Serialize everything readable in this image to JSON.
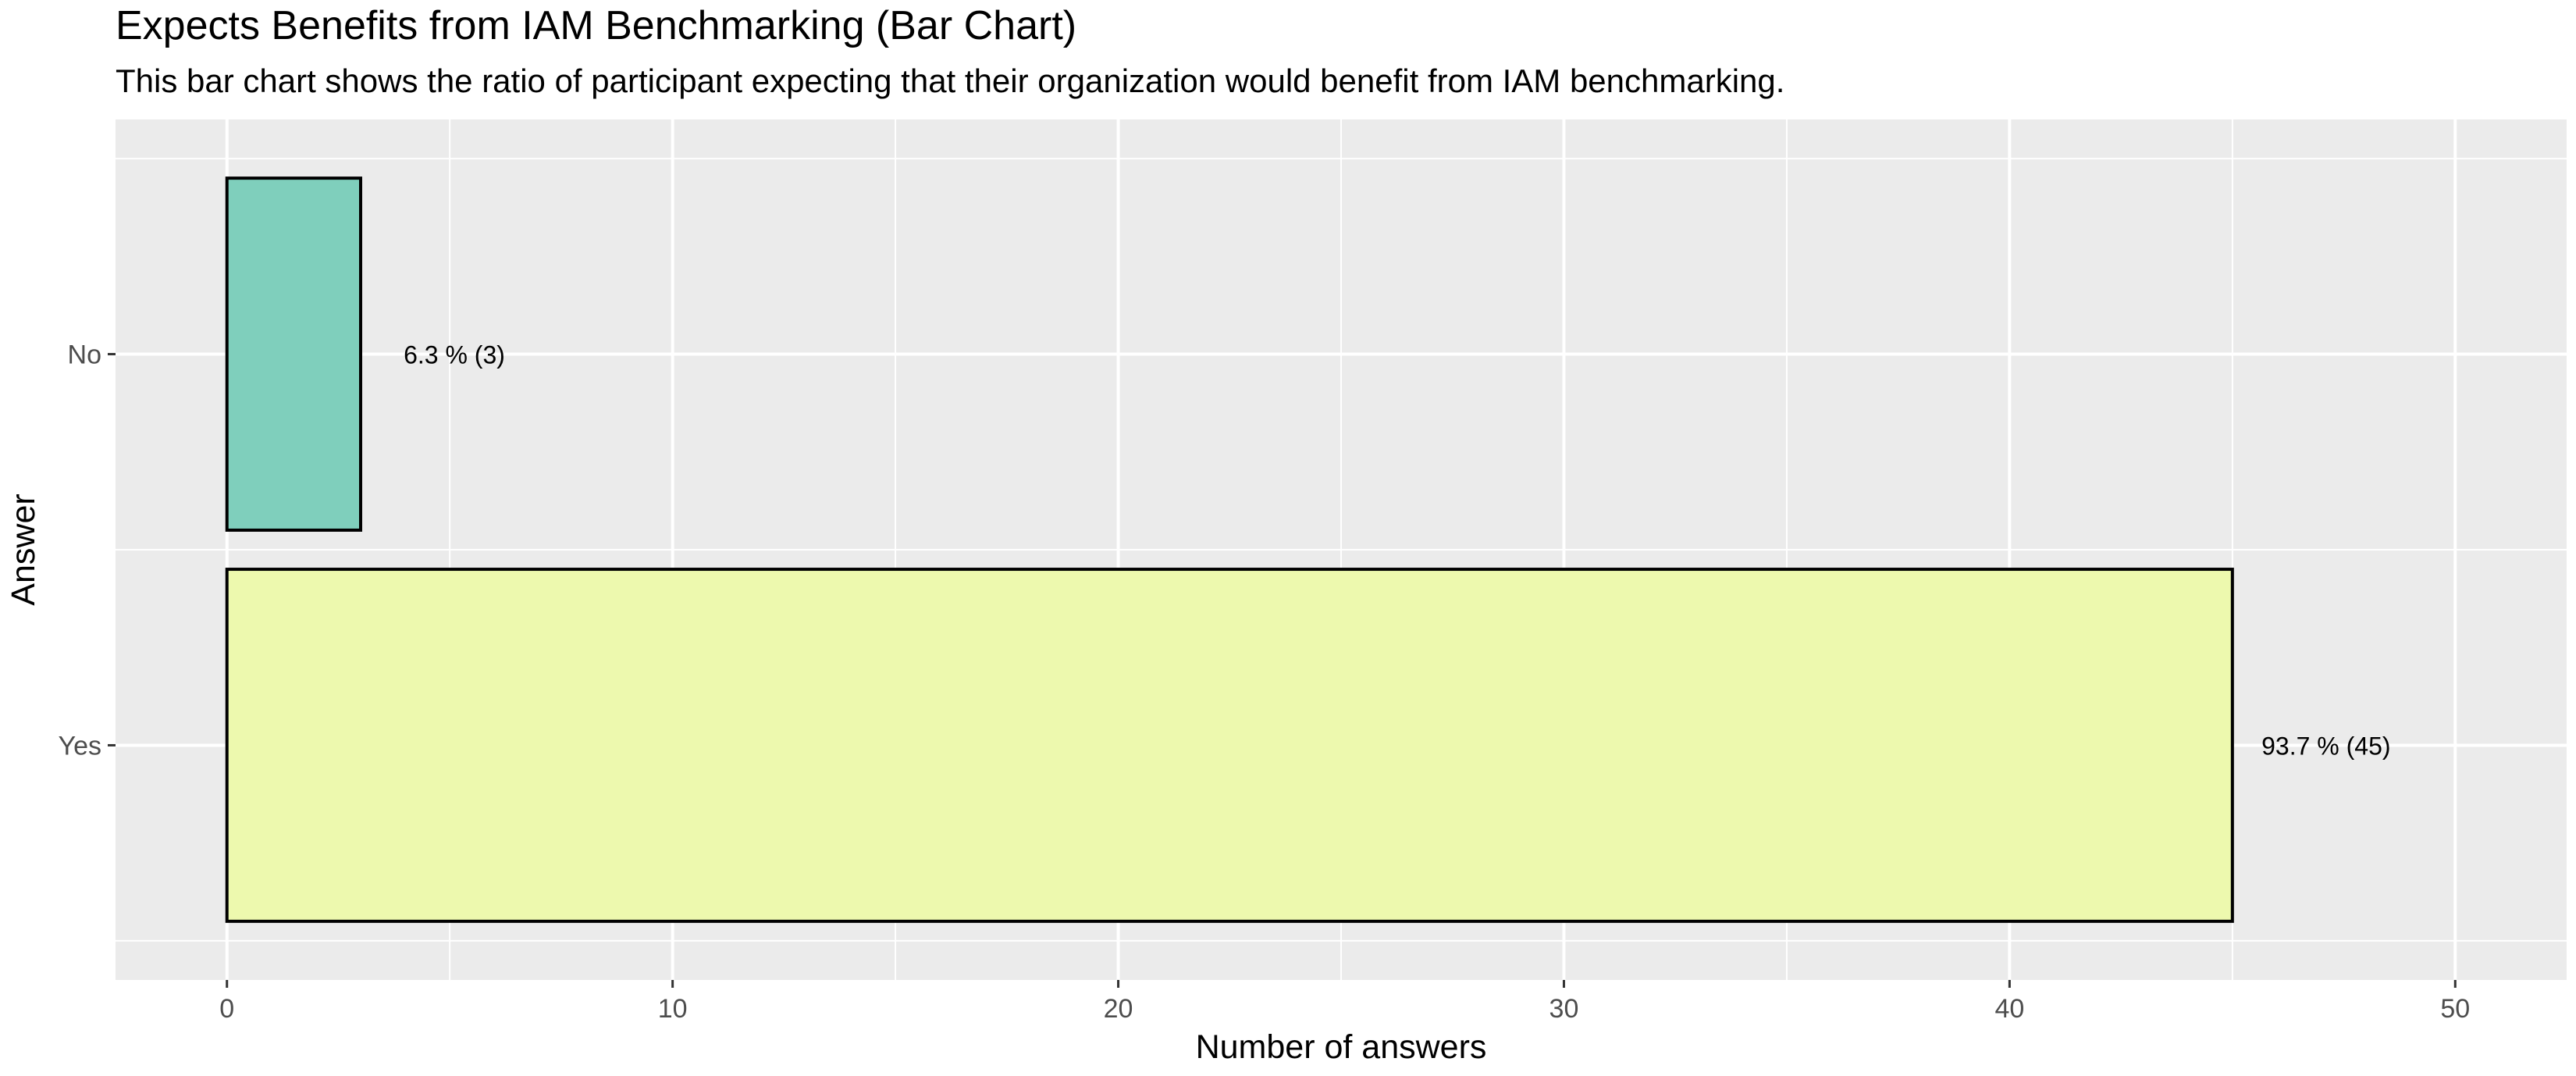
{
  "chart_data": {
    "type": "bar",
    "orientation": "horizontal",
    "title": "Expects Benefits from IAM Benchmarking (Bar Chart)",
    "subtitle": "This bar chart shows the ratio of participant expecting that their organization would benefit from IAM benchmarking.",
    "xlabel": "Number of answers",
    "ylabel": "Answer",
    "categories": [
      "No",
      "Yes"
    ],
    "values": [
      3,
      45
    ],
    "data_labels": [
      "6.3 % (3)",
      "93.7 % (45)"
    ],
    "bar_colors": [
      "#7fcfbc",
      "#edf9ae"
    ],
    "bar_outline_color": "#000000",
    "panel_background": "#ebebeb",
    "grid": true,
    "grid_color": "#ffffff",
    "xlim": [
      -2.5,
      52.5
    ],
    "x_ticks": [
      0,
      10,
      20,
      30,
      40,
      50
    ],
    "x_tick_labels": [
      "0",
      "10",
      "20",
      "30",
      "40",
      "50"
    ],
    "x_minor_ticks": [
      5,
      15,
      25,
      35,
      45
    ],
    "legend": "none"
  }
}
